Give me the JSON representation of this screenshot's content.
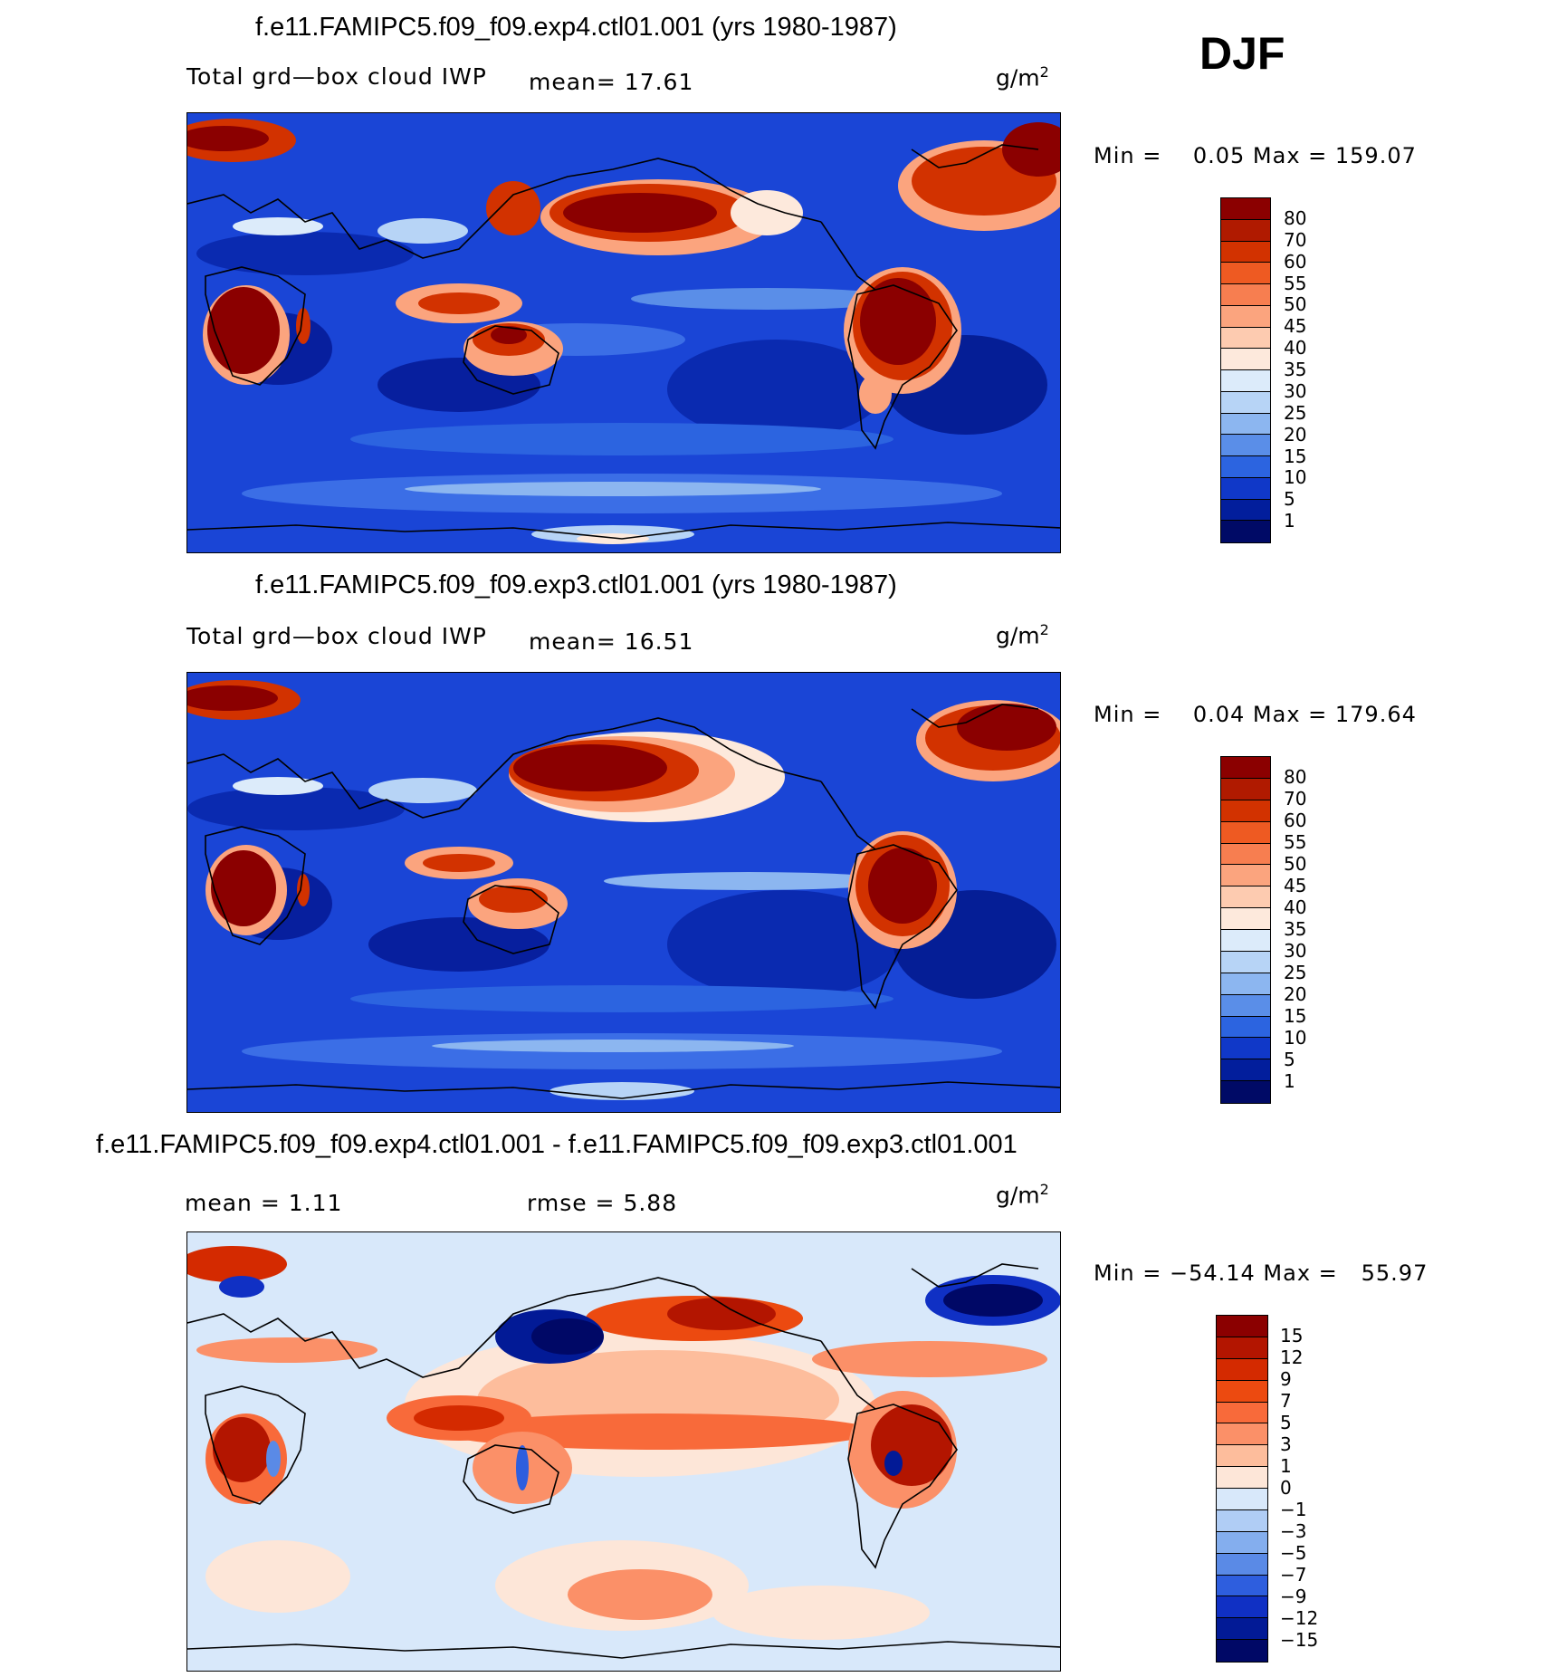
{
  "season": "DJF",
  "panels": [
    {
      "title": "f.e11.FAMIPC5.f09_f09.exp4.ctl01.001 (yrs 1980-1987)",
      "variable": "Total grd—box cloud IWP",
      "mean_text": "mean=  17.61",
      "unit_base": "g/m",
      "unit_exp": "2",
      "minmax": "Min =    0.05 Max = 159.07",
      "levels": [
        "80",
        "70",
        "60",
        "55",
        "50",
        "45",
        "40",
        "35",
        "30",
        "25",
        "20",
        "15",
        "10",
        "5",
        "1"
      ],
      "colors": [
        "#8b0000",
        "#b01a00",
        "#d23200",
        "#ee5a22",
        "#f77e50",
        "#fba47e",
        "#fdcbb0",
        "#fde9dc",
        "#dcebfa",
        "#b7d4f6",
        "#8cb6f0",
        "#5a8ee8",
        "#2c64e0",
        "#1038c8",
        "#021e9c",
        "#000a66"
      ]
    },
    {
      "title": "f.e11.FAMIPC5.f09_f09.exp3.ctl01.001 (yrs 1980-1987)",
      "variable": "Total grd—box cloud IWP",
      "mean_text": "mean=  16.51",
      "unit_base": "g/m",
      "unit_exp": "2",
      "minmax": "Min =    0.04 Max = 179.64",
      "levels": [
        "80",
        "70",
        "60",
        "55",
        "50",
        "45",
        "40",
        "35",
        "30",
        "25",
        "20",
        "15",
        "10",
        "5",
        "1"
      ],
      "colors": [
        "#8b0000",
        "#b01a00",
        "#d23200",
        "#ee5a22",
        "#f77e50",
        "#fba47e",
        "#fdcbb0",
        "#fde9dc",
        "#dcebfa",
        "#b7d4f6",
        "#8cb6f0",
        "#5a8ee8",
        "#2c64e0",
        "#1038c8",
        "#021e9c",
        "#000a66"
      ]
    },
    {
      "title": "f.e11.FAMIPC5.f09_f09.exp4.ctl01.001 - f.e11.FAMIPC5.f09_f09.exp3.ctl01.001",
      "mean_text": "mean =    1.11",
      "rmse_text": "rmse =    5.88",
      "unit_base": "g/m",
      "unit_exp": "2",
      "minmax": "Min = −54.14 Max =   55.97",
      "levels": [
        "15",
        "12",
        "9",
        "7",
        "5",
        "3",
        "1",
        "0",
        "−1",
        "−3",
        "−5",
        "−7",
        "−9",
        "−12",
        "−15"
      ],
      "colors": [
        "#8b0000",
        "#b31500",
        "#d42a00",
        "#ec4a10",
        "#f86a3a",
        "#fb9068",
        "#fdbd9c",
        "#fde6d8",
        "#d8e8fa",
        "#b0cdf5",
        "#84aeee",
        "#5a8ae6",
        "#2e5ede",
        "#1030c4",
        "#021a96",
        "#000866"
      ]
    }
  ]
}
